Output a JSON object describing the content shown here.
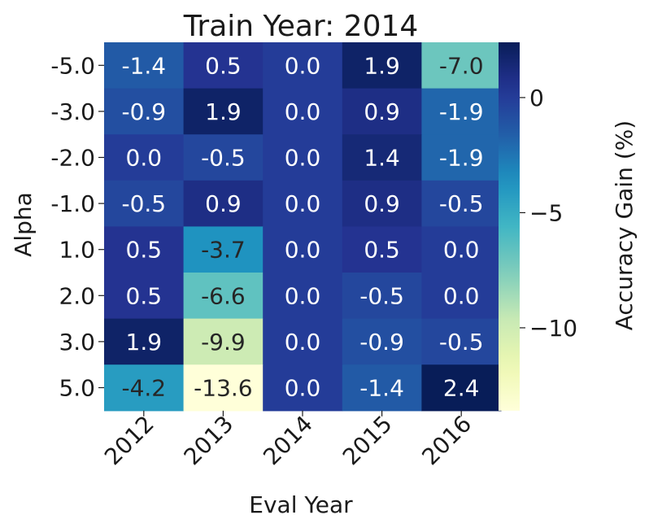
{
  "chart_data": {
    "type": "heatmap",
    "title": "Train Year: 2014",
    "xlabel": "Eval Year",
    "ylabel": "Alpha",
    "x_categories": [
      "2012",
      "2013",
      "2014",
      "2015",
      "2016"
    ],
    "y_categories": [
      "-5.0",
      "-3.0",
      "-2.0",
      "-1.0",
      "1.0",
      "2.0",
      "3.0",
      "5.0"
    ],
    "values": [
      [
        -1.4,
        0.5,
        0.0,
        1.9,
        -7.0
      ],
      [
        -0.9,
        1.9,
        0.0,
        0.9,
        -1.9
      ],
      [
        0.0,
        -0.5,
        0.0,
        1.4,
        -1.9
      ],
      [
        -0.5,
        0.9,
        0.0,
        0.9,
        -0.5
      ],
      [
        0.5,
        -3.7,
        0.0,
        0.5,
        0.0
      ],
      [
        0.5,
        -6.6,
        0.0,
        -0.5,
        0.0
      ],
      [
        1.9,
        -9.9,
        0.0,
        -0.9,
        -0.5
      ],
      [
        -4.2,
        -13.6,
        0.0,
        -1.4,
        2.4
      ]
    ],
    "colorbar": {
      "label": "Accuracy Gain (%)",
      "vmin": -13.6,
      "vmax": 2.4,
      "ticks": [
        0,
        -5,
        -10
      ],
      "tick_labels": [
        "0",
        "−5",
        "−10"
      ],
      "colormap": "YlGnBu"
    }
  }
}
